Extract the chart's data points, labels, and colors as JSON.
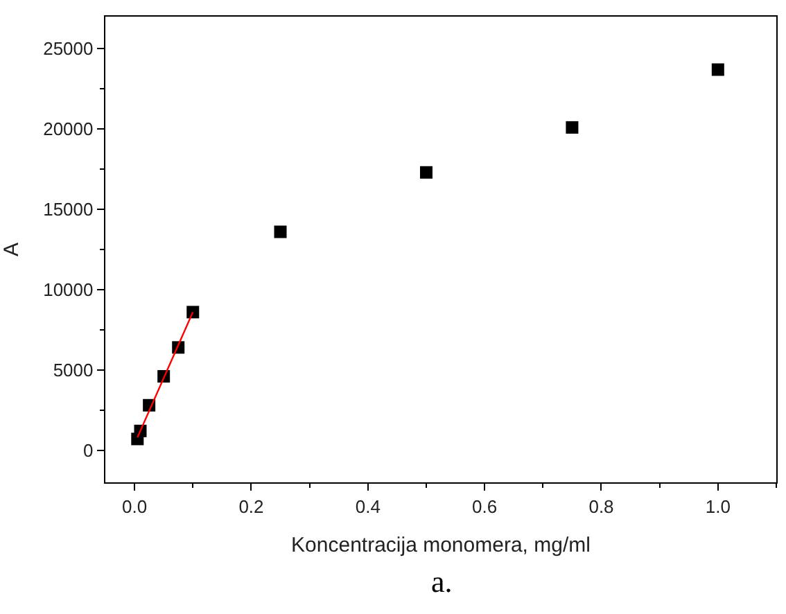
{
  "chart_data": {
    "type": "scatter",
    "xlabel": "Koncentracija monomera, mg/ml",
    "ylabel": "A",
    "x": [
      0.005,
      0.01,
      0.025,
      0.05,
      0.075,
      0.1,
      0.25,
      0.5,
      0.75,
      1.0
    ],
    "series": [
      {
        "color": "#000000",
        "marker": "square",
        "values": [
          700,
          1200,
          2800,
          4600,
          6400,
          8600,
          13600,
          17300,
          20100,
          23700
        ]
      },
      {
        "type": "line",
        "color": "#ff0000",
        "marker": "none",
        "line_style": "solid",
        "x": [
          0.005,
          0.1
        ],
        "values": [
          800,
          8600
        ]
      }
    ],
    "xlim": [
      -0.05,
      1.1
    ],
    "xticks": [
      {
        "value": 0,
        "label": "0.0"
      },
      0.2,
      0.4,
      0.6,
      0.8,
      {
        "value": 1,
        "label": "1.0"
      }
    ],
    "ylim": [
      -2000,
      27000
    ],
    "yticks": [
      0,
      5000,
      10000,
      15000,
      20000,
      25000
    ],
    "legend": false,
    "annotations": [
      "a."
    ]
  }
}
